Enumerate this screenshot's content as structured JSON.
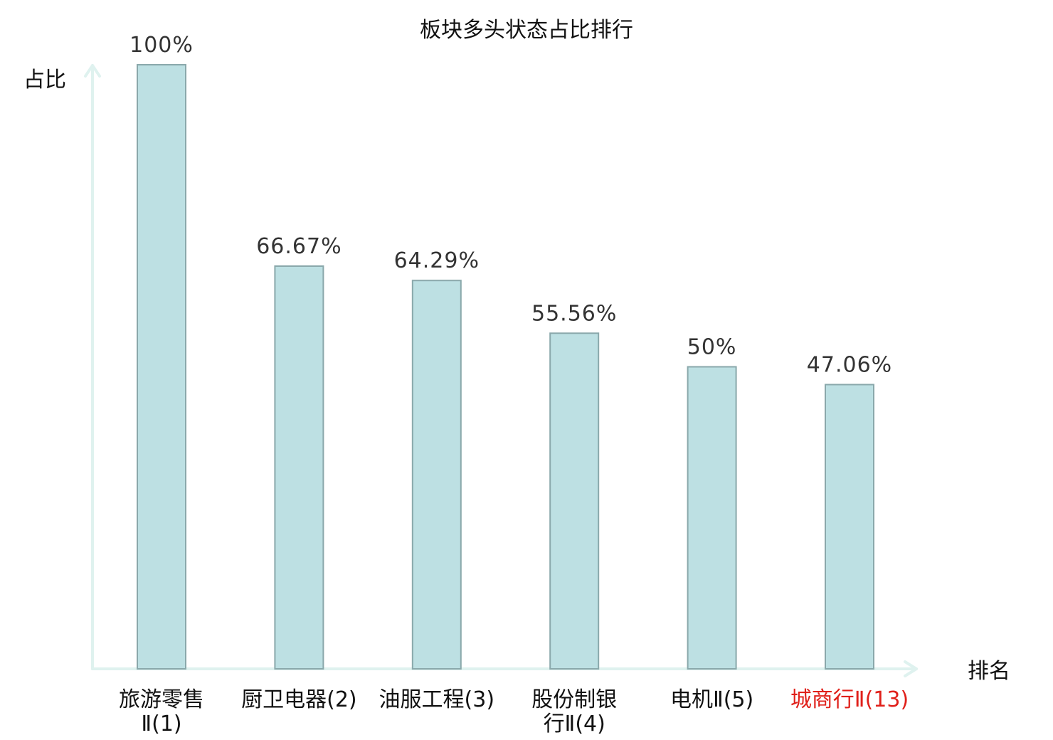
{
  "chart_data": {
    "type": "bar",
    "title": "板块多头状态占比排行",
    "ylabel": "占比",
    "xlabel": "排名",
    "ylim": [
      0,
      100
    ],
    "grid": false,
    "categories": [
      {
        "name": "旅游零售",
        "suffix": "Ⅱ(1)",
        "wrap": [
          "旅游零售",
          "Ⅱ(1)"
        ],
        "highlight": false
      },
      {
        "name": "厨卫电器",
        "suffix": "(2)",
        "wrap": [
          "厨卫电器(2)"
        ],
        "highlight": false
      },
      {
        "name": "油服工程",
        "suffix": "(3)",
        "wrap": [
          "油服工程(3)"
        ],
        "highlight": false
      },
      {
        "name": "股份制银",
        "suffix": "行Ⅱ(4)",
        "wrap": [
          "股份制银",
          "行Ⅱ(4)"
        ],
        "highlight": false
      },
      {
        "name": "电机",
        "suffix": "Ⅱ(5)",
        "wrap": [
          "电机Ⅱ(5)"
        ],
        "highlight": false
      },
      {
        "name": "城商行",
        "suffix": "Ⅱ(13)",
        "wrap": [
          "城商行Ⅱ(13)"
        ],
        "highlight": true
      }
    ],
    "values": [
      100,
      66.67,
      64.29,
      55.56,
      50,
      47.06
    ],
    "value_labels": [
      "100%",
      "66.67%",
      "64.29%",
      "55.56%",
      "50%",
      "47.06%"
    ],
    "colors": {
      "bar_fill": "#bde0e3",
      "bar_stroke": "#8aa8ab",
      "axis": "#dff2ef",
      "highlight": "#e0201a"
    }
  }
}
